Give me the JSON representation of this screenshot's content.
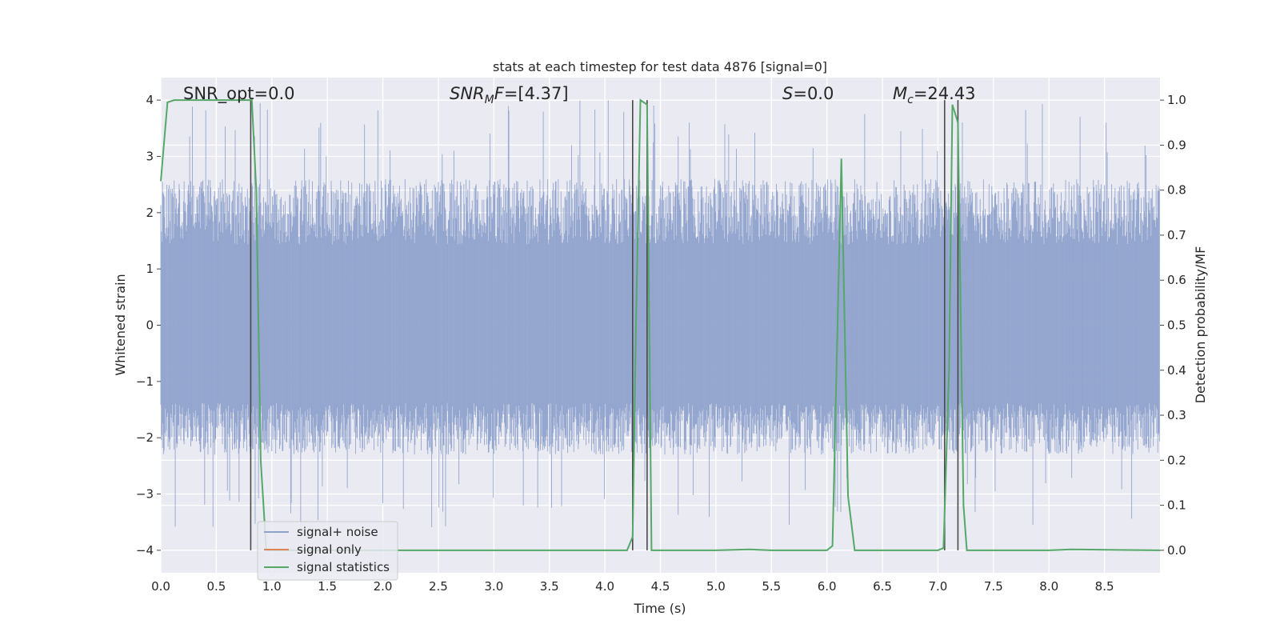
{
  "colors": {
    "background": "#eaeaf2",
    "grid": "#ffffff",
    "noise": "#8fa2cc",
    "signal_only": "#dd8452",
    "statistics": "#55a868",
    "markers": "#4a4a4a"
  },
  "chart_data": {
    "type": "line",
    "title": "stats at each timestep for test data 4876 [signal=0]",
    "xlabel": "Time (s)",
    "ylabel": "Whitened strain",
    "y2label": "Detection probability/MF",
    "xlim": [
      0,
      9.0
    ],
    "ylim": [
      -4.4,
      4.4
    ],
    "y2lim": [
      -0.05,
      1.05
    ],
    "xticks": [
      0.0,
      0.5,
      1.0,
      1.5,
      2.0,
      2.5,
      3.0,
      3.5,
      4.0,
      4.5,
      5.0,
      5.5,
      6.0,
      6.5,
      7.0,
      7.5,
      8.0,
      8.5
    ],
    "xtick_labels": [
      "0.0",
      "0.5",
      "1.0",
      "1.5",
      "2.0",
      "2.5",
      "3.0",
      "3.5",
      "4.0",
      "4.5",
      "5.0",
      "5.5",
      "6.0",
      "6.5",
      "7.0",
      "7.5",
      "8.0",
      "8.5"
    ],
    "yticks": [
      -4,
      -3,
      -2,
      -1,
      0,
      1,
      2,
      3,
      4
    ],
    "ytick_labels": [
      "−4",
      "−3",
      "−2",
      "−1",
      "0",
      "1",
      "2",
      "3",
      "4"
    ],
    "y2ticks": [
      0.0,
      0.1,
      0.2,
      0.3,
      0.4,
      0.5,
      0.6,
      0.7,
      0.8,
      0.9,
      1.0
    ],
    "y2tick_labels": [
      "0.0",
      "0.1",
      "0.2",
      "0.3",
      "0.4",
      "0.5",
      "0.6",
      "0.7",
      "0.8",
      "0.9",
      "1.0"
    ],
    "grid": true,
    "legend": {
      "placement": "lower-left",
      "entries": [
        "signal+ noise",
        "signal only",
        "signal statistics"
      ]
    },
    "annotations": {
      "snr_opt": "SNR_opt=0.0",
      "snr_mf": {
        "name": "SNR",
        "sub": "M",
        "suffix": "F",
        "value": "=[4.37]"
      },
      "s": {
        "name": "S",
        "value": "=0.0"
      },
      "mc": {
        "name": "M",
        "sub": "c",
        "value": "=24.43"
      }
    },
    "noise_envelope": {
      "x_start": 0.0,
      "x_end": 9.0,
      "samples": 1800,
      "typical_range": [
        -2.3,
        2.6
      ],
      "extreme_range": [
        -3.6,
        4.0
      ]
    },
    "series": [
      {
        "name": "signal statistics",
        "axis": "right",
        "x": [
          0.0,
          0.06,
          0.12,
          0.3,
          0.5,
          0.7,
          0.8,
          0.82,
          0.86,
          0.9,
          0.95,
          1.0,
          2.0,
          3.0,
          4.0,
          4.2,
          4.25,
          4.28,
          4.32,
          4.38,
          4.42,
          5.0,
          5.3,
          5.5,
          6.0,
          6.05,
          6.13,
          6.19,
          6.25,
          7.0,
          7.05,
          7.1,
          7.13,
          7.18,
          7.23,
          7.26,
          8.0,
          8.2,
          9.0
        ],
        "values": [
          0.82,
          0.995,
          1.0,
          1.0,
          1.0,
          1.0,
          1.0,
          1.0,
          0.8,
          0.2,
          0.0,
          0.0,
          0.0,
          0.0,
          0.0,
          0.0,
          0.03,
          0.5,
          1.0,
          0.99,
          0.0,
          0.0,
          0.002,
          0.0,
          0.0,
          0.01,
          0.87,
          0.12,
          0.0,
          0.0,
          0.005,
          0.4,
          0.99,
          0.95,
          0.1,
          0.0,
          0.0,
          0.002,
          0.0
        ]
      }
    ],
    "vertical_markers": [
      {
        "x": 0.81,
        "range": [
          0.0,
          1.0
        ]
      },
      {
        "x": 4.25,
        "range": [
          0.0,
          1.0
        ]
      },
      {
        "x": 4.38,
        "range": [
          0.0,
          1.0
        ]
      },
      {
        "x": 7.06,
        "range": [
          0.0,
          1.0
        ]
      },
      {
        "x": 7.18,
        "range": [
          0.0,
          1.0
        ]
      }
    ]
  }
}
